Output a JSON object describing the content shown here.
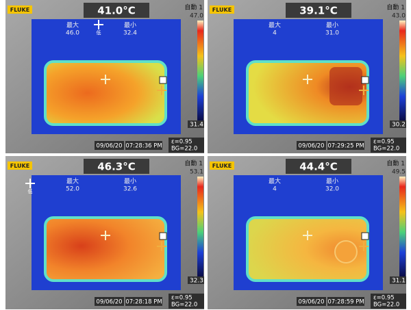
{
  "panels": [
    {
      "brand": "FLUKE",
      "mode": "自動 1",
      "center_temp": "41.0°C",
      "scale_max": "47.0",
      "scale_min": "31.4",
      "max_label": "最大",
      "max_value": "46.0",
      "min_label": "最小",
      "min_value": "32.4",
      "marker": "低",
      "date": "09/06/20",
      "time": "07:28:36 PM",
      "emissivity": "ε=0.95",
      "background": "BG=22.0"
    },
    {
      "brand": "FLUKE",
      "mode": "自動 1",
      "center_temp": "39.1°C",
      "scale_max": "43.0",
      "scale_min": "30.2",
      "max_label": "最大",
      "max_value": "4",
      "min_label": "最小",
      "min_value": "31.0",
      "date": "09/06/20",
      "time": "07:29:25 PM",
      "emissivity": "ε=0.95",
      "background": "BG=22.0"
    },
    {
      "brand": "FLUKE",
      "mode": "自動 1",
      "center_temp": "46.3°C",
      "scale_max": "53.1",
      "scale_min": "32.3",
      "max_label": "最大",
      "max_value": "52.0",
      "min_label": "最小",
      "min_value": "32.6",
      "marker": "低",
      "date": "09/06/20",
      "time": "07:28:18 PM",
      "emissivity": "ε=0.95",
      "background": "BG=22.0"
    },
    {
      "brand": "FLUKE",
      "mode": "自動 1",
      "center_temp": "44.4°C",
      "scale_max": "49.5",
      "scale_min": "31.1",
      "max_label": "最大",
      "max_value": "4",
      "min_label": "最小",
      "min_value": "32.0",
      "date": "09/06/20",
      "time": "07:28:59 PM",
      "emissivity": "ε=0.95",
      "background": "BG=22.0"
    }
  ]
}
